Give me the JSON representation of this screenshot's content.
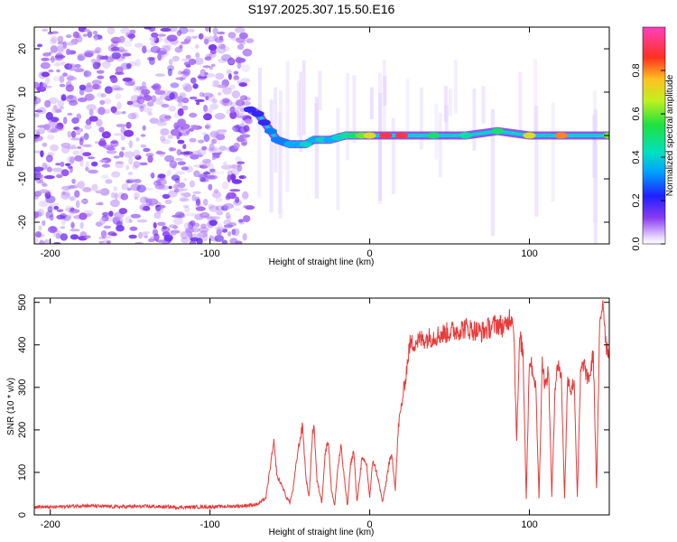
{
  "title": "S197.2025.307.15.50.E16",
  "colors": {
    "snr_line": "#e83a3a",
    "scatter": "#8a3cf0",
    "frame": "#000000",
    "background": "#ffffff"
  },
  "chart_data": [
    {
      "type": "heatmap",
      "title": "S197.2025.307.15.50.E16",
      "xlabel": "Height of straight line (km)",
      "ylabel": "Frequency (Hz)",
      "xlim": [
        -210,
        150
      ],
      "ylim": [
        -25,
        25
      ],
      "xticks": [
        -200,
        -100,
        0,
        100
      ],
      "xtick_labels": [
        "-200",
        "-100",
        "0",
        "100"
      ],
      "yticks": [
        -20,
        -10,
        0,
        10,
        20
      ],
      "ytick_labels": [
        "-20",
        "-10",
        "0",
        "10",
        "20"
      ],
      "noise_region_x": [
        -210,
        -75
      ],
      "ridge": {
        "x": [
          -75,
          -70,
          -66,
          -62,
          -58,
          -54,
          -50,
          -45,
          -40,
          -35,
          -30,
          -25,
          -20,
          -15,
          -10,
          -5,
          0,
          10,
          20,
          40,
          60,
          80,
          100,
          120,
          150
        ],
        "y": [
          6,
          5,
          3,
          1,
          -1,
          -1.5,
          -2,
          -2,
          -2,
          -1,
          -1,
          -1,
          -0.5,
          0,
          0,
          0,
          0,
          0,
          0,
          0,
          0,
          1,
          0,
          0,
          0
        ],
        "intensity": [
          0.2,
          0.2,
          0.2,
          0.3,
          0.3,
          0.3,
          0.35,
          0.35,
          0.4,
          0.35,
          0.4,
          0.35,
          0.4,
          0.45,
          0.5,
          0.6,
          0.7,
          0.9,
          0.9,
          0.5,
          0.45,
          0.5,
          0.7,
          0.8,
          0.6
        ]
      },
      "colorbar": {
        "label": "Normalized spectral amplitude",
        "range": [
          0,
          1
        ],
        "ticks": [
          0.0,
          0.2,
          0.4,
          0.6,
          0.8
        ],
        "tick_labels": [
          "0.0",
          "0.2",
          "0.4",
          "0.6",
          "0.8"
        ],
        "colormap": "rainbow"
      }
    },
    {
      "type": "line",
      "xlabel": "Height of straight line (km)",
      "ylabel": "SNR (10 * v/v)",
      "xlim": [
        -210,
        150
      ],
      "ylim": [
        0,
        510
      ],
      "xticks": [
        -200,
        -100,
        0,
        100
      ],
      "xtick_labels": [
        "-200",
        "-100",
        "0",
        "100"
      ],
      "yticks": [
        0,
        100,
        200,
        300,
        400,
        500
      ],
      "ytick_labels": [
        "0",
        "100",
        "200",
        "300",
        "400",
        "500"
      ],
      "series": [
        {
          "name": "SNR",
          "x": [
            -210,
            -200,
            -180,
            -160,
            -140,
            -120,
            -100,
            -80,
            -70,
            -65,
            -62,
            -60,
            -58,
            -55,
            -52,
            -50,
            -48,
            -45,
            -42,
            -40,
            -38,
            -36,
            -35,
            -33,
            -30,
            -28,
            -26,
            -24,
            -22,
            -20,
            -18,
            -16,
            -14,
            -12,
            -10,
            -8,
            -5,
            -2,
            0,
            2,
            5,
            8,
            10,
            12,
            14,
            16,
            18,
            20,
            22,
            25,
            30,
            40,
            50,
            60,
            70,
            80,
            85,
            88,
            90,
            92,
            94,
            96,
            98,
            100,
            102,
            104,
            106,
            108,
            110,
            112,
            114,
            116,
            118,
            120,
            122,
            124,
            126,
            128,
            130,
            132,
            134,
            136,
            138,
            140,
            142,
            144,
            146,
            148,
            150
          ],
          "y": [
            20,
            18,
            22,
            19,
            20,
            18,
            19,
            21,
            25,
            40,
            120,
            170,
            90,
            70,
            40,
            30,
            60,
            150,
            210,
            90,
            40,
            180,
            220,
            80,
            30,
            140,
            180,
            60,
            20,
            110,
            160,
            90,
            20,
            120,
            150,
            30,
            130,
            120,
            40,
            130,
            90,
            30,
            70,
            120,
            140,
            60,
            210,
            260,
            310,
            400,
            410,
            420,
            430,
            440,
            430,
            450,
            440,
            470,
            460,
            180,
            420,
            380,
            40,
            370,
            340,
            300,
            40,
            360,
            300,
            340,
            40,
            300,
            360,
            320,
            40,
            330,
            290,
            320,
            40,
            330,
            360,
            320,
            330,
            380,
            60,
            440,
            510,
            400,
            380
          ]
        }
      ]
    }
  ]
}
